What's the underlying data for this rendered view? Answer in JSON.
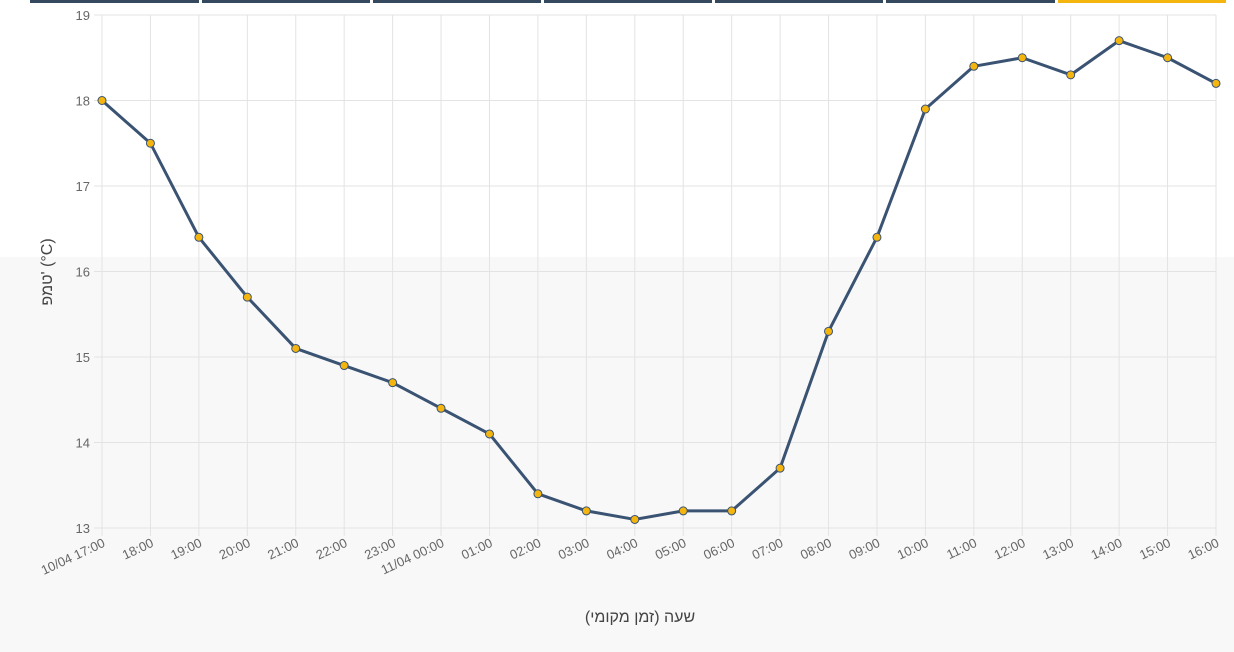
{
  "chart_data": {
    "type": "line",
    "x_label": "שעה (זמן מקומי)",
    "y_label": "טמפ' (°C)",
    "categories": [
      "10/04 17:00",
      "18:00",
      "19:00",
      "20:00",
      "21:00",
      "22:00",
      "23:00",
      "11/04 00:00",
      "01:00",
      "02:00",
      "03:00",
      "04:00",
      "05:00",
      "06:00",
      "07:00",
      "08:00",
      "09:00",
      "10:00",
      "11:00",
      "12:00",
      "13:00",
      "14:00",
      "15:00",
      "16:00"
    ],
    "series": [
      {
        "color": "#3a5373",
        "marker_color": "#f5b50f",
        "values": [
          18,
          17.5,
          16.4,
          15.7,
          15.1,
          14.9,
          14.7,
          14.4,
          14.1,
          13.4,
          13.2,
          13.1,
          13.2,
          13.2,
          13.7,
          15.3,
          16.4,
          17.9,
          18.4,
          18.5,
          18.3,
          18.7,
          18.5,
          18.2
        ]
      }
    ],
    "ylim": [
      13,
      19
    ],
    "yticks": [
      13,
      14,
      15,
      16,
      17,
      18,
      19
    ],
    "grid": true
  }
}
